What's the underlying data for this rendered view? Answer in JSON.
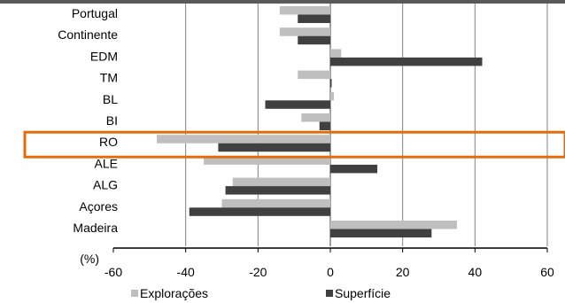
{
  "chart_data": {
    "type": "bar",
    "orientation": "horizontal",
    "unit_label": "(%)",
    "categories": [
      "Portugal",
      "Continente",
      "EDM",
      "TM",
      "BL",
      "BI",
      "RO",
      "ALE",
      "ALG",
      "Açores",
      "Madeira"
    ],
    "series": [
      {
        "name": "Explorações",
        "color": "#bfbfbf",
        "values": [
          -14,
          -14,
          3,
          -9,
          1,
          -8,
          -48,
          -35,
          -27,
          -30,
          35
        ]
      },
      {
        "name": "Superfície",
        "color": "#404040",
        "values": [
          -9,
          -9,
          42,
          0,
          -18,
          -3,
          -31,
          13,
          -29,
          -39,
          28
        ]
      }
    ],
    "xlim": [
      -60,
      60
    ],
    "x_ticks": [
      -60,
      -40,
      -20,
      0,
      20,
      40,
      60
    ],
    "grid": "vertical",
    "legend_position": "bottom",
    "highlight": {
      "category": "RO",
      "color": "#e26b0a"
    }
  }
}
